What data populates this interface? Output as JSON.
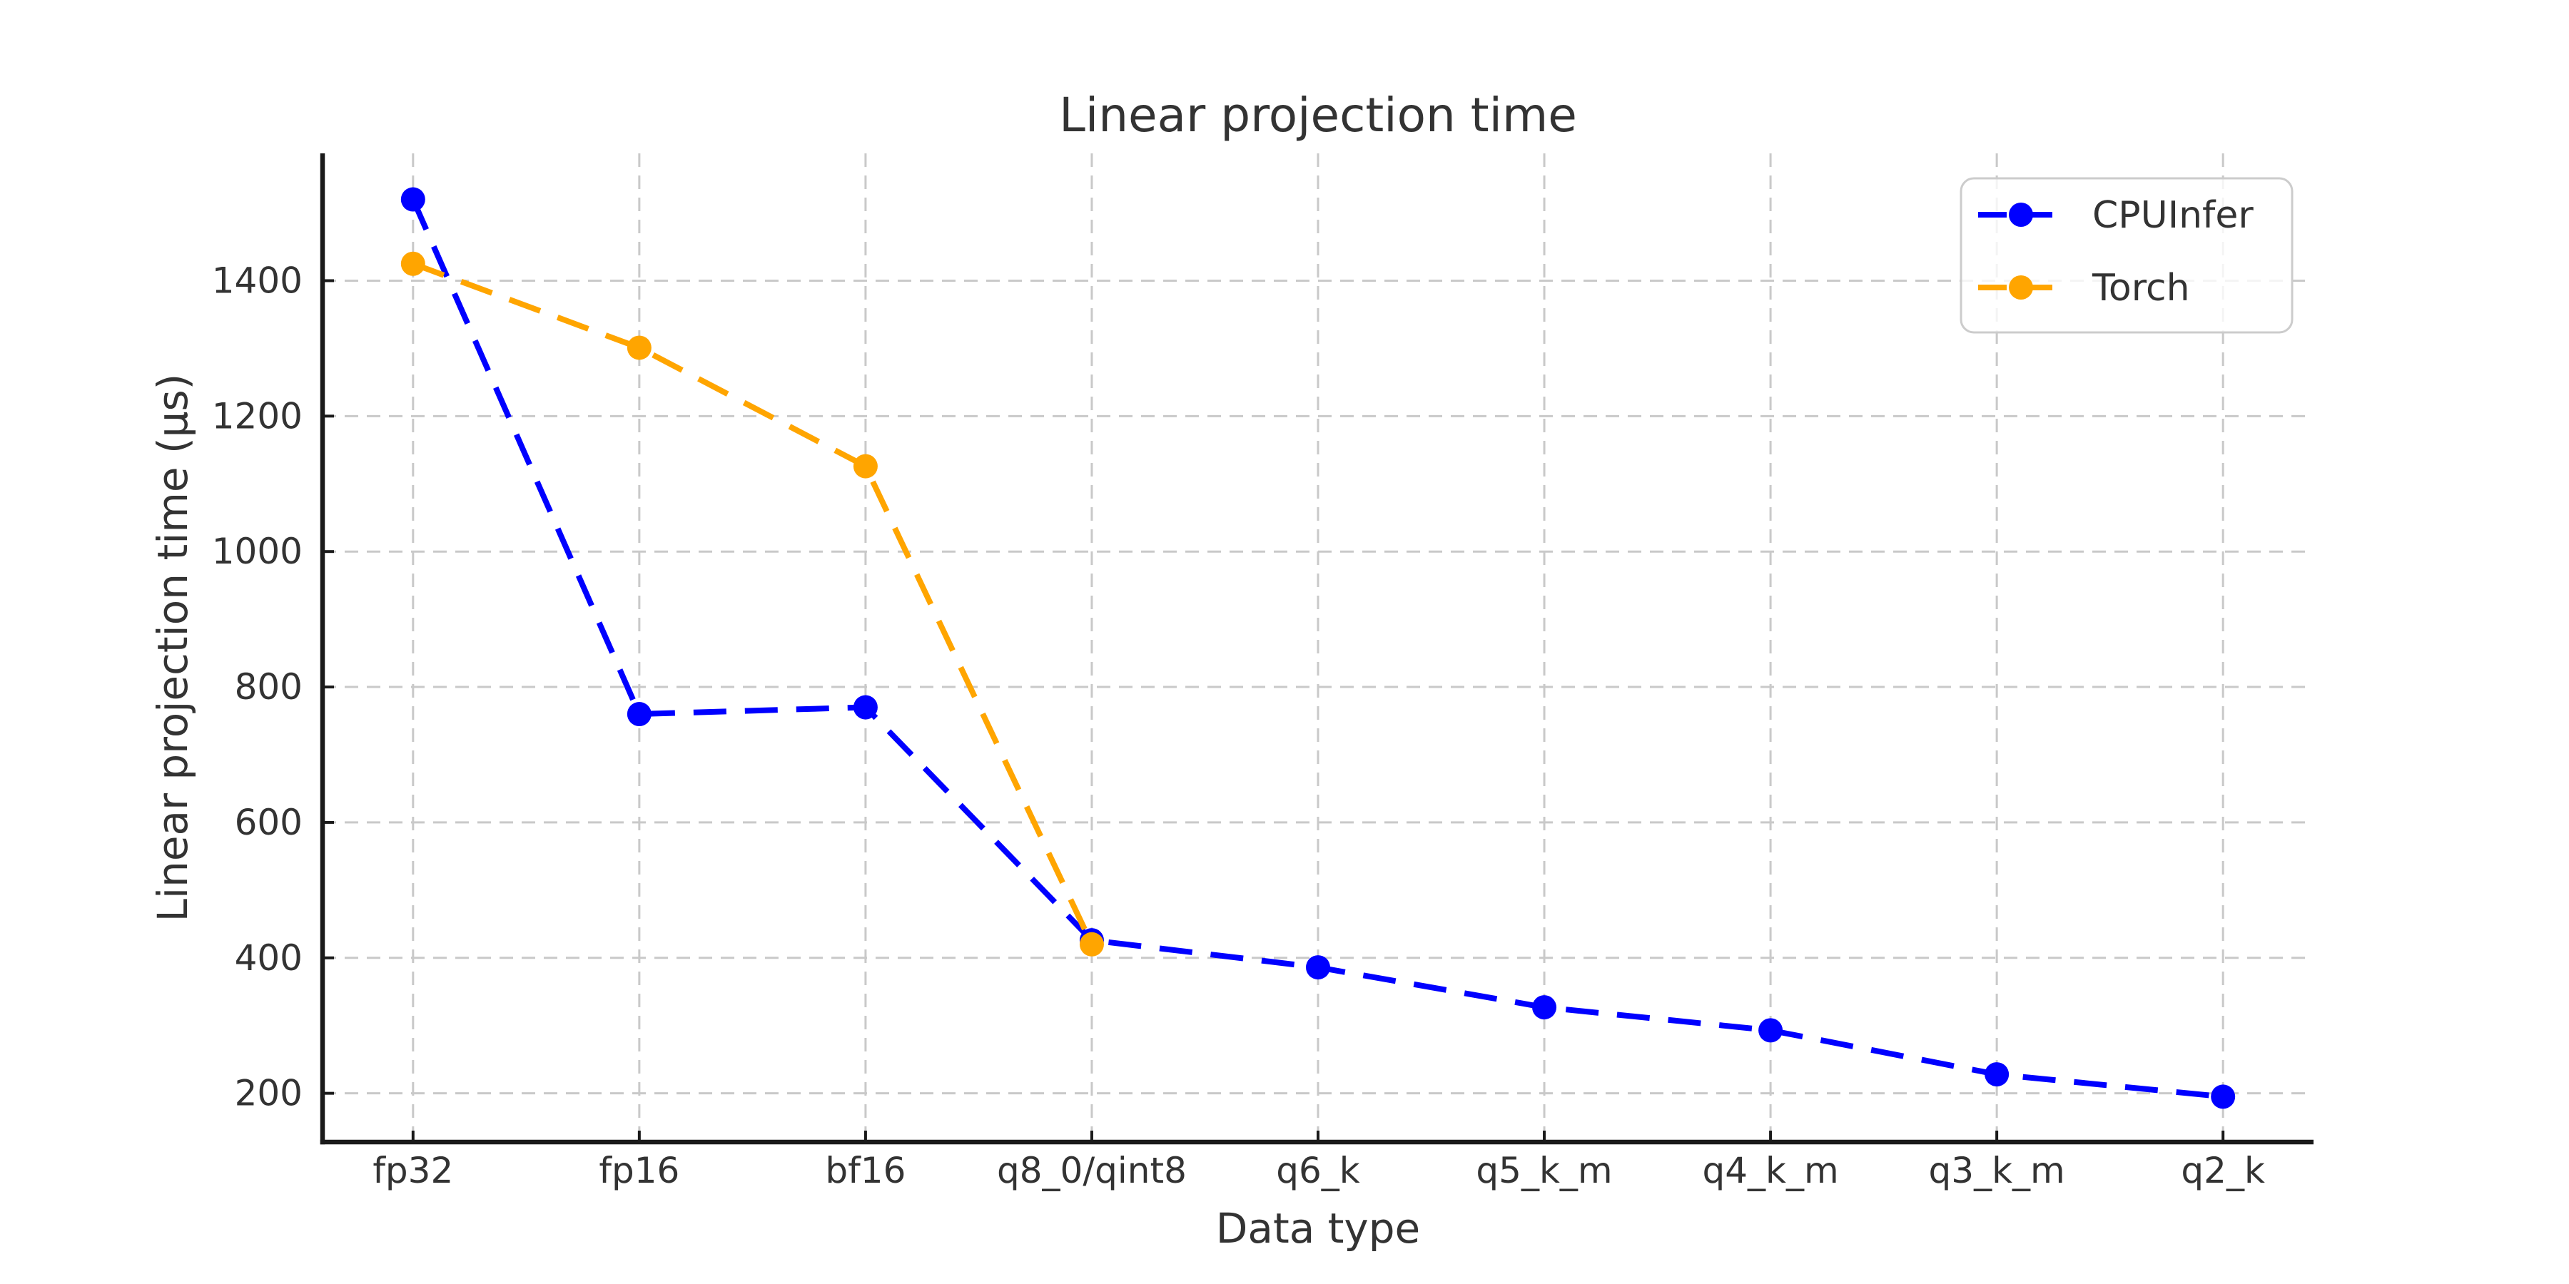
{
  "figure": {
    "background_color": "#ffffff"
  },
  "chart_data": {
    "type": "line",
    "title": "Linear projection time",
    "xlabel": "Data type",
    "ylabel": "Linear projection time (μs)",
    "categories": [
      "fp32",
      "fp16",
      "bf16",
      "q8_0/qint8",
      "q6_k",
      "q5_k_m",
      "q4_k_m",
      "q3_k_m",
      "q2_k"
    ],
    "series": [
      {
        "name": "CPUInfer",
        "color": "#0000ff",
        "line_style": "dashed",
        "marker": "circle",
        "values": [
          1520,
          760,
          770,
          426,
          386,
          327,
          293,
          228,
          195
        ]
      },
      {
        "name": "Torch",
        "color": "#ffa500",
        "line_style": "dashed",
        "marker": "circle",
        "values": [
          1425,
          1301,
          1126,
          420,
          null,
          null,
          null,
          null,
          null
        ]
      }
    ],
    "yticks": [
      200,
      400,
      600,
      800,
      1000,
      1200,
      1400
    ],
    "ylim": [
      128,
      1588
    ],
    "grid": true,
    "legend": {
      "position": "upper right",
      "labels": [
        "CPUInfer",
        "Torch"
      ]
    },
    "styles": {
      "grid_color": "#c9c9c9",
      "spine_color": "#1a1a1a",
      "tick_color": "#1a1a1a",
      "text_color": "#333333",
      "legend_border_color": "#cccccc",
      "legend_fill": "rgba(255,255,255,0.8)"
    }
  }
}
